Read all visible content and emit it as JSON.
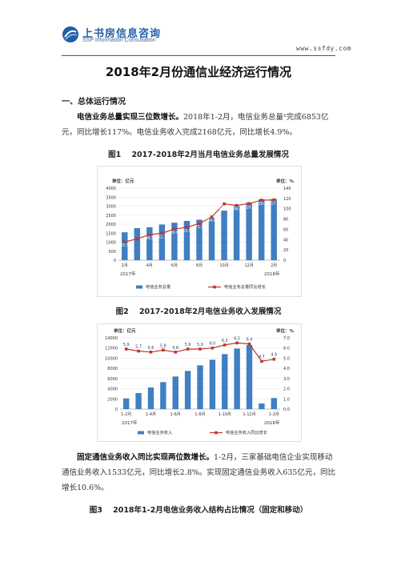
{
  "header": {
    "logo_cn": "上书房信息咨询",
    "logo_en": "SSP Information Consultation",
    "site": "www.ssfdy.com"
  },
  "doc": {
    "title": "2018年2月份通信业经济运行情况",
    "section1": "一、总体运行情况",
    "p1_bold": "电信业务总量实现三位数增长。",
    "p1_text": "2018年1-2月，电信业务总量¹完成6853亿元，同比增长117%。电信业务收入完成2168亿元，同比增长4.9%。",
    "fig1_caption": "图1    2017-2018年2月当月电信业务总量发展情况",
    "fig2_caption": "图2    2017-2018年2月电信业务收入发展情况",
    "p2_bold": "固定通信业务收入同比实现两位数增长。",
    "p2_text": "1-2月，三家基础电信企业实现移动通信业务收入1533亿元，同比增长2.8%。实现固定通信业务收入635亿元，同比增长10.6%。",
    "fig3_caption": "图3    2018年1-2月电信业务收入结构占比情况（固定和移动）"
  },
  "chart_data": [
    {
      "type": "bar",
      "unit_left": "单位：亿元",
      "unit_right": "单位：%",
      "categories": [
        "2月",
        "3月",
        "4月",
        "5月",
        "6月",
        "7月",
        "8月",
        "9月",
        "10月",
        "11月",
        "12月",
        "1月",
        "2月"
      ],
      "x_tick_labels": [
        "2月",
        "4月",
        "6月",
        "8月",
        "10月",
        "12月",
        "2月"
      ],
      "year_labels": [
        "2017年",
        "2018年"
      ],
      "series": [
        {
          "name": "电信业务总量",
          "kind": "bar",
          "axis": "left",
          "color": "#3f7fc2",
          "values": [
            1550,
            1780,
            1830,
            1980,
            2080,
            2180,
            2250,
            2350,
            2750,
            3000,
            3200,
            3380,
            3400
          ]
        },
        {
          "name": "电信业务总量同比增长",
          "kind": "line",
          "axis": "right",
          "color": "#c0392b",
          "values": [
            35.5,
            41.5,
            49.5,
            52.3,
            60.6,
            63.9,
            71.3,
            84.0,
            109.4,
            106.4,
            110.0,
            116.6,
            117.1
          ]
        }
      ],
      "data_labels": [
        "35.5",
        "",
        "49.5",
        "52.3",
        "60.6",
        "63.9",
        "71.3",
        "84.0",
        "109.4",
        "106.4",
        "110.0",
        "116.6",
        "117.1"
      ],
      "y_left": {
        "min": 0,
        "max": 4000,
        "ticks": [
          "0",
          "500",
          "1000",
          "1500",
          "2000",
          "2500",
          "3000",
          "3500",
          "4000"
        ]
      },
      "y_right": {
        "min": 0,
        "max": 140,
        "ticks": [
          "0",
          "20",
          "40",
          "60",
          "80",
          "100",
          "120",
          "140"
        ]
      },
      "legend_position": "bottom"
    },
    {
      "type": "bar",
      "unit_left": "单位：亿元",
      "unit_right": "单位：%",
      "categories": [
        "1-2月",
        "1-3月",
        "1-4月",
        "1-5月",
        "1-6月",
        "1-7月",
        "1-8月",
        "1-9月",
        "1-10月",
        "1-11月",
        "1-12月",
        "1月",
        "1-2月"
      ],
      "x_tick_labels": [
        "1-2月",
        "1-4月",
        "1-6月",
        "1-8月",
        "1-10月",
        "1-12月",
        "1-2月"
      ],
      "year_labels": [
        "2017年",
        "2018年"
      ],
      "series": [
        {
          "name": "电信业务收入",
          "kind": "bar",
          "axis": "left",
          "color": "#3f7fc2",
          "values": [
            2100,
            3150,
            4250,
            5300,
            6400,
            7500,
            8600,
            9700,
            10800,
            11900,
            12600,
            1100,
            2170
          ]
        },
        {
          "name": "电信业务收入同比增长",
          "kind": "line",
          "axis": "right",
          "color": "#c0392b",
          "values": [
            5.9,
            5.7,
            5.6,
            5.8,
            5.6,
            5.9,
            5.9,
            6.0,
            6.3,
            6.5,
            6.4,
            4.7,
            4.9
          ]
        }
      ],
      "data_labels": [
        "5.9",
        "5.7",
        "5.6",
        "5.8",
        "5.6",
        "5.9",
        "5.9",
        "6.0",
        "6.3",
        "6.5",
        "6.4",
        "4.7",
        "4.9"
      ],
      "y_left": {
        "min": 0,
        "max": 14000,
        "ticks": [
          "0",
          "2000",
          "4000",
          "6000",
          "8000",
          "10000",
          "12000",
          "14000"
        ]
      },
      "y_right": {
        "min": 0,
        "max": 7,
        "ticks": [
          "0.0",
          "1.0",
          "2.0",
          "3.0",
          "4.0",
          "5.0",
          "6.0",
          "7.0"
        ]
      },
      "legend_position": "bottom"
    }
  ]
}
